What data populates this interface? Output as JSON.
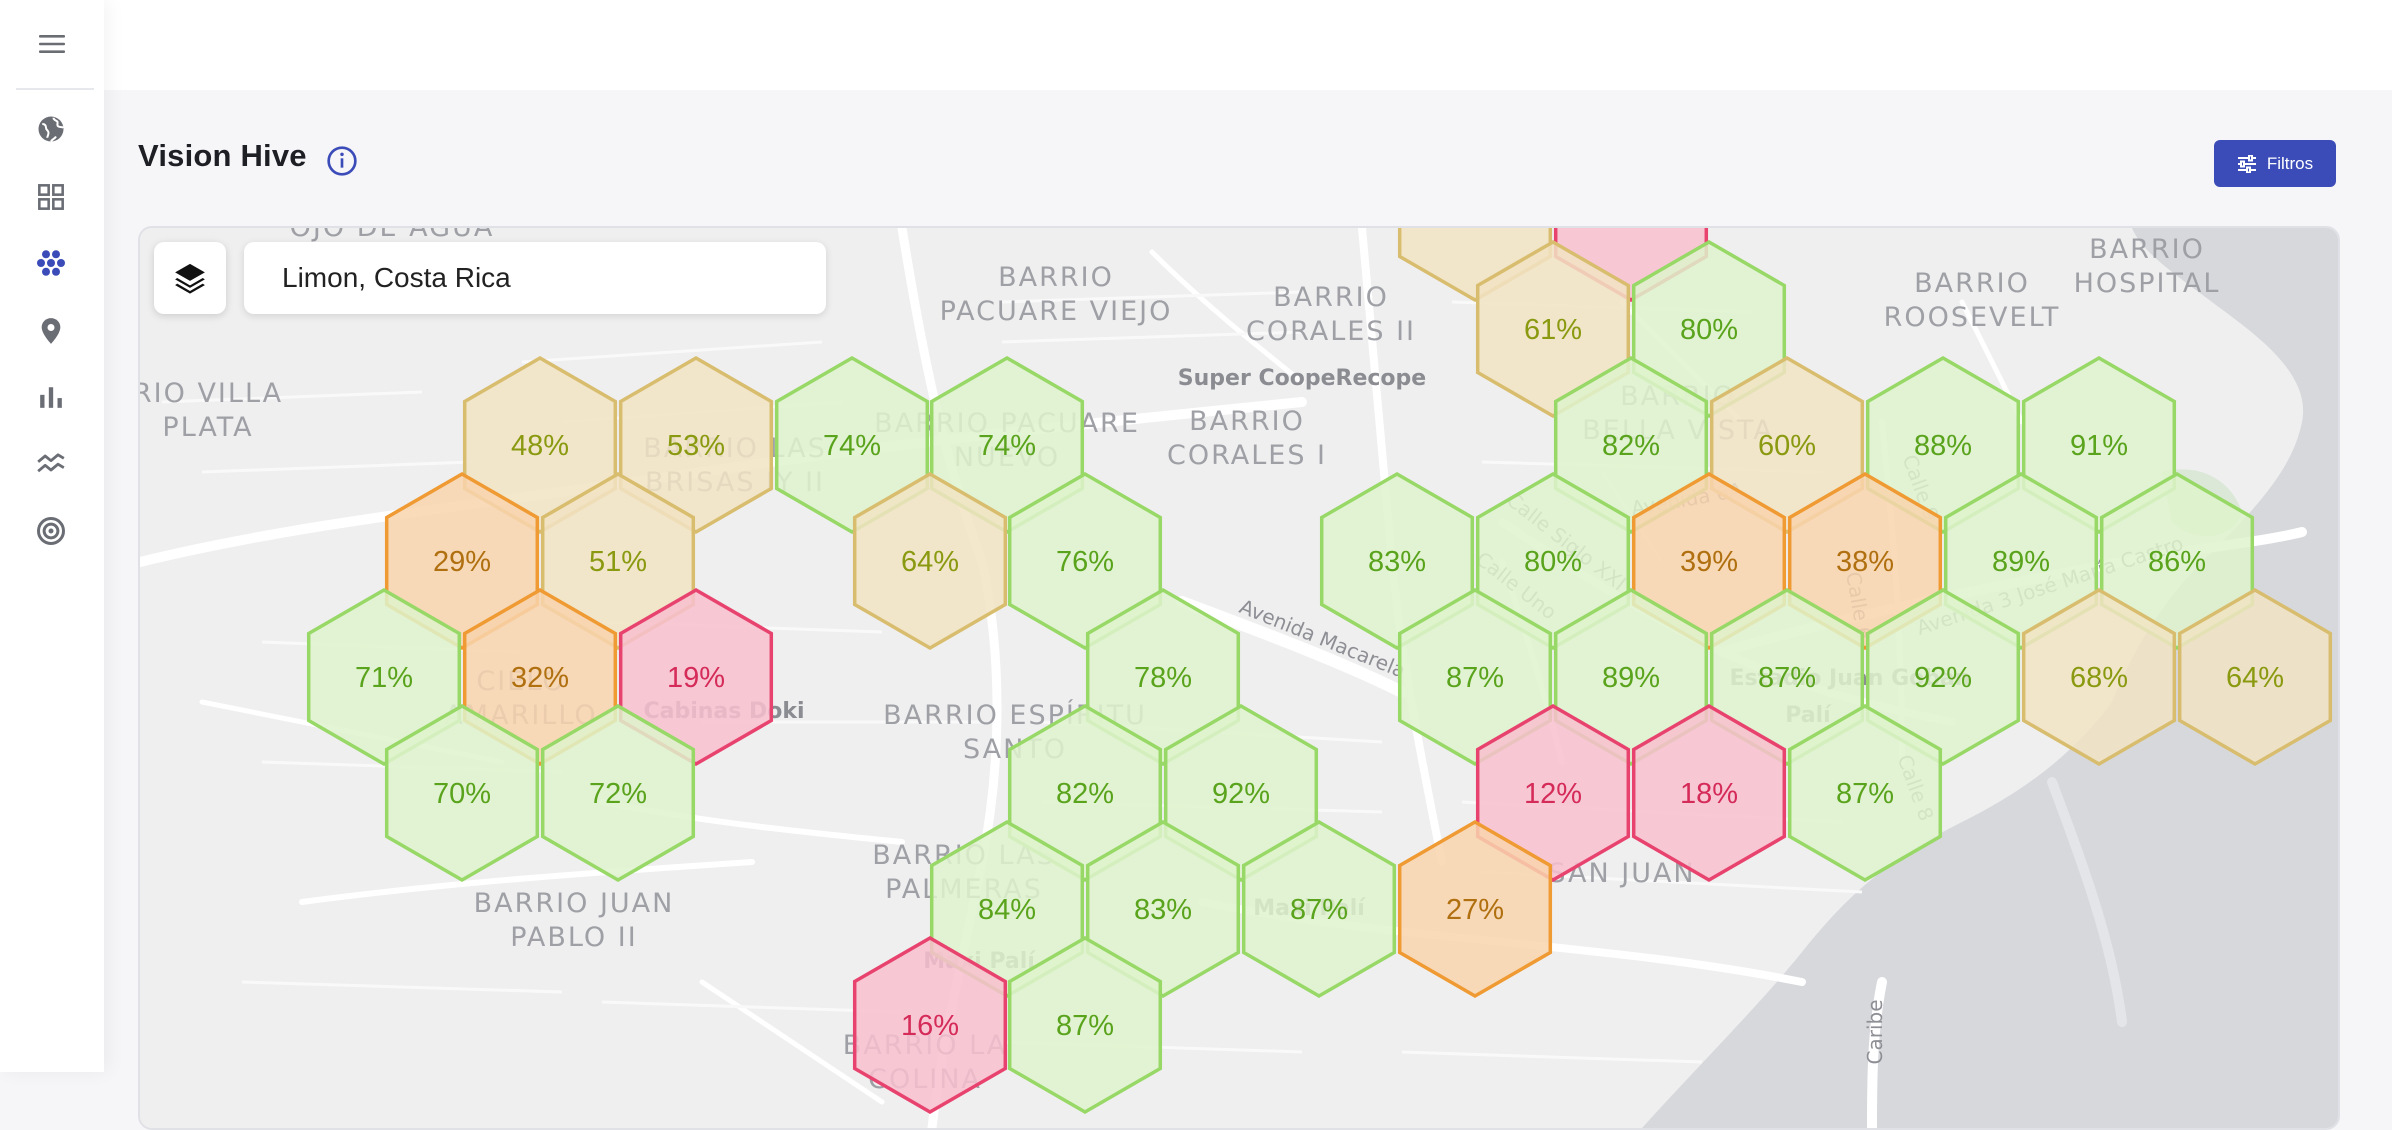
{
  "header": {
    "title": "Vision Hive",
    "filter_label": "Filtros"
  },
  "search": {
    "value": "Limon, Costa Rica"
  },
  "colors": {
    "accent": "#3b4cb8",
    "high": "#8bd24a",
    "mid": "#d9b764",
    "low": "#f0a030",
    "critical": "#ea3d6b"
  },
  "sidebar": {
    "items": [
      {
        "icon": "globe-icon"
      },
      {
        "icon": "grid-icon"
      },
      {
        "icon": "hive-icon",
        "active": true
      },
      {
        "icon": "location-pin-icon"
      },
      {
        "icon": "bar-chart-icon"
      },
      {
        "icon": "trend-icon"
      },
      {
        "icon": "target-icon"
      }
    ]
  },
  "map": {
    "labels": [
      {
        "lines": [
          "OJO DE AGUA"
        ]
      },
      {
        "lines": [
          "BARRIO",
          "PACUARE VIEJO"
        ]
      },
      {
        "lines": [
          "BARRIO",
          "CORALES II"
        ]
      },
      {
        "lines": [
          "BARRIO",
          "ROOSEVELT"
        ]
      },
      {
        "lines": [
          "BARRIO",
          "HOSPITAL"
        ]
      },
      {
        "lines": [
          "RIO VILLA",
          "PLATA"
        ]
      },
      {
        "lines": [
          "BARRIO LAS",
          "BRISAS IY II"
        ]
      },
      {
        "lines": [
          "BARRIO PACUARE",
          "NUEVO"
        ]
      },
      {
        "lines": [
          "BARRIO",
          "CORALES I"
        ]
      },
      {
        "lines": [
          "BARRIO",
          "BELLA VISTA"
        ]
      },
      {
        "lines": [
          "CIELO",
          "AMARILLO"
        ]
      },
      {
        "lines": [
          "BARRIO ESPÍRITU",
          "SANTO"
        ]
      },
      {
        "lines": [
          "BARRIO LAS",
          "PALMERAS"
        ]
      },
      {
        "lines": [
          "SAN JUAN"
        ]
      },
      {
        "lines": [
          "BARRIO JUAN",
          "PABLO II"
        ]
      },
      {
        "lines": [
          "BARRIO LA",
          "COLINA"
        ]
      }
    ],
    "pois": [
      {
        "text": "Super CoopeRecope"
      },
      {
        "text": "Cabinas Doki"
      },
      {
        "text": "Maxi Palí"
      },
      {
        "text": "Maxi Palí"
      },
      {
        "text": "Palí"
      },
      {
        "text": "Estadio Juan Gobán"
      }
    ],
    "streets": [
      {
        "text": "Avenida Macarela"
      },
      {
        "text": "Calle Siglo XXI"
      },
      {
        "text": "Calle Uno"
      },
      {
        "text": "Avenida 6A"
      },
      {
        "text": "Calle 9"
      },
      {
        "text": "Calle 6"
      },
      {
        "text": "Avenida 3 José María Castro"
      },
      {
        "text": "Calle 8"
      },
      {
        "text": "Caribe"
      }
    ],
    "hexes": [
      {
        "value": "",
        "level": "mid"
      },
      {
        "value": "",
        "level": "critical"
      },
      {
        "value": "61%",
        "level": "mid"
      },
      {
        "value": "80%",
        "level": "high"
      },
      {
        "value": "48%",
        "level": "mid"
      },
      {
        "value": "53%",
        "level": "mid"
      },
      {
        "value": "74%",
        "level": "high"
      },
      {
        "value": "74%",
        "level": "high"
      },
      {
        "value": "82%",
        "level": "high"
      },
      {
        "value": "60%",
        "level": "mid"
      },
      {
        "value": "88%",
        "level": "high"
      },
      {
        "value": "91%",
        "level": "high"
      },
      {
        "value": "29%",
        "level": "low"
      },
      {
        "value": "51%",
        "level": "mid"
      },
      {
        "value": "64%",
        "level": "mid"
      },
      {
        "value": "76%",
        "level": "high"
      },
      {
        "value": "83%",
        "level": "high"
      },
      {
        "value": "80%",
        "level": "high"
      },
      {
        "value": "39%",
        "level": "low"
      },
      {
        "value": "38%",
        "level": "low"
      },
      {
        "value": "89%",
        "level": "high"
      },
      {
        "value": "86%",
        "level": "high"
      },
      {
        "value": "71%",
        "level": "high"
      },
      {
        "value": "32%",
        "level": "low"
      },
      {
        "value": "19%",
        "level": "critical"
      },
      {
        "value": "78%",
        "level": "high"
      },
      {
        "value": "87%",
        "level": "high"
      },
      {
        "value": "89%",
        "level": "high"
      },
      {
        "value": "87%",
        "level": "high"
      },
      {
        "value": "92%",
        "level": "high"
      },
      {
        "value": "68%",
        "level": "mid"
      },
      {
        "value": "64%",
        "level": "mid"
      },
      {
        "value": "70%",
        "level": "high"
      },
      {
        "value": "72%",
        "level": "high"
      },
      {
        "value": "82%",
        "level": "high"
      },
      {
        "value": "92%",
        "level": "high"
      },
      {
        "value": "12%",
        "level": "critical"
      },
      {
        "value": "18%",
        "level": "critical"
      },
      {
        "value": "87%",
        "level": "high"
      },
      {
        "value": "84%",
        "level": "high"
      },
      {
        "value": "83%",
        "level": "high"
      },
      {
        "value": "87%",
        "level": "high"
      },
      {
        "value": "27%",
        "level": "low"
      },
      {
        "value": "16%",
        "level": "critical"
      },
      {
        "value": "87%",
        "level": "high"
      }
    ]
  }
}
